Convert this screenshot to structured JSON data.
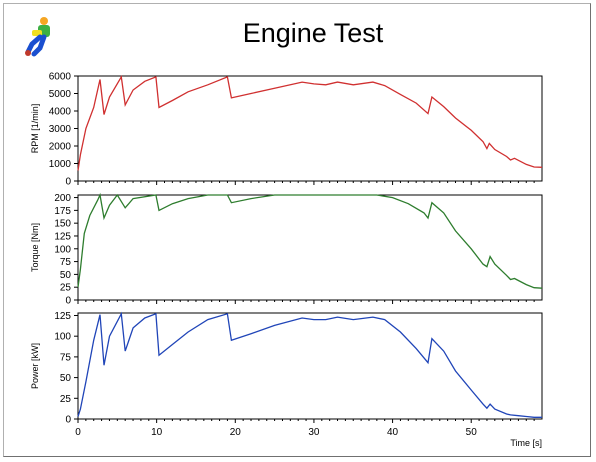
{
  "chart_data": {
    "title": "Engine Test",
    "type": "line",
    "x_axis": {
      "label": "Time [s]",
      "range": [
        0,
        59
      ],
      "ticks": [
        0,
        10,
        20,
        30,
        40,
        50
      ]
    },
    "panels": [
      {
        "name": "rpm",
        "ylabel": "RPM [1/min]",
        "ylim": [
          0,
          6000
        ],
        "yticks": [
          0,
          1000,
          2000,
          3000,
          4000,
          5000,
          6000
        ],
        "color": "#d03030",
        "points": [
          [
            0,
            600
          ],
          [
            0.3,
            1500
          ],
          [
            1,
            3000
          ],
          [
            2,
            4200
          ],
          [
            2.8,
            5800
          ],
          [
            3.3,
            3800
          ],
          [
            4,
            4800
          ],
          [
            5.5,
            5950
          ],
          [
            6,
            4350
          ],
          [
            7,
            5200
          ],
          [
            8.5,
            5700
          ],
          [
            9.9,
            5950
          ],
          [
            10.3,
            4200
          ],
          [
            12,
            4600
          ],
          [
            14,
            5100
          ],
          [
            16.5,
            5500
          ],
          [
            19,
            5950
          ],
          [
            19.5,
            4750
          ],
          [
            22,
            5000
          ],
          [
            25,
            5300
          ],
          [
            28.5,
            5650
          ],
          [
            30,
            5550
          ],
          [
            31.5,
            5500
          ],
          [
            33,
            5650
          ],
          [
            35,
            5500
          ],
          [
            37.5,
            5650
          ],
          [
            39,
            5450
          ],
          [
            41,
            4950
          ],
          [
            43,
            4450
          ],
          [
            44.5,
            3850
          ],
          [
            45,
            4800
          ],
          [
            46.5,
            4250
          ],
          [
            48,
            3600
          ],
          [
            50,
            2900
          ],
          [
            51.5,
            2250
          ],
          [
            52,
            1850
          ],
          [
            52.3,
            2150
          ],
          [
            53,
            1800
          ],
          [
            54.5,
            1400
          ],
          [
            55,
            1200
          ],
          [
            55.5,
            1300
          ],
          [
            57,
            950
          ],
          [
            58,
            800
          ],
          [
            59,
            780
          ]
        ]
      },
      {
        "name": "torque",
        "ylabel": "Torque [Nm]",
        "ylim": [
          0,
          205
        ],
        "yticks": [
          0,
          25,
          50,
          75,
          100,
          125,
          150,
          175,
          200
        ],
        "color": "#2e7d2e",
        "points": [
          [
            0,
            25
          ],
          [
            0.3,
            60
          ],
          [
            0.8,
            130
          ],
          [
            1.5,
            165
          ],
          [
            2.5,
            195
          ],
          [
            2.8,
            205
          ],
          [
            3.3,
            160
          ],
          [
            4,
            185
          ],
          [
            5,
            205
          ],
          [
            6,
            180
          ],
          [
            7,
            198
          ],
          [
            9.9,
            205
          ],
          [
            10.3,
            175
          ],
          [
            12,
            188
          ],
          [
            14,
            198
          ],
          [
            16.5,
            205
          ],
          [
            19,
            205
          ],
          [
            19.5,
            190
          ],
          [
            22,
            198
          ],
          [
            25,
            205
          ],
          [
            30,
            205
          ],
          [
            35,
            205
          ],
          [
            38,
            205
          ],
          [
            40,
            200
          ],
          [
            42,
            188
          ],
          [
            44,
            170
          ],
          [
            44.5,
            160
          ],
          [
            45,
            190
          ],
          [
            46.5,
            170
          ],
          [
            48,
            135
          ],
          [
            50,
            100
          ],
          [
            51.5,
            70
          ],
          [
            52,
            65
          ],
          [
            52.4,
            85
          ],
          [
            53,
            70
          ],
          [
            54.5,
            48
          ],
          [
            55,
            40
          ],
          [
            55.5,
            42
          ],
          [
            57,
            30
          ],
          [
            58,
            24
          ],
          [
            59,
            23
          ]
        ]
      },
      {
        "name": "power",
        "ylabel": "Power [kW]",
        "ylim": [
          0,
          128
        ],
        "yticks": [
          0,
          25,
          50,
          75,
          100,
          125
        ],
        "color": "#2045b8",
        "points": [
          [
            0,
            3
          ],
          [
            0.3,
            12
          ],
          [
            1,
            45
          ],
          [
            2,
            95
          ],
          [
            2.8,
            126
          ],
          [
            3.3,
            65
          ],
          [
            4,
            100
          ],
          [
            5.5,
            127
          ],
          [
            6,
            82
          ],
          [
            7,
            110
          ],
          [
            8.5,
            122
          ],
          [
            9.9,
            127
          ],
          [
            10.3,
            77
          ],
          [
            12,
            90
          ],
          [
            14,
            105
          ],
          [
            16.5,
            120
          ],
          [
            19,
            127
          ],
          [
            19.5,
            95
          ],
          [
            22,
            103
          ],
          [
            25,
            113
          ],
          [
            28.5,
            122
          ],
          [
            30,
            120
          ],
          [
            31.5,
            120
          ],
          [
            33,
            123
          ],
          [
            35,
            120
          ],
          [
            37.5,
            123
          ],
          [
            39,
            120
          ],
          [
            41,
            105
          ],
          [
            43,
            85
          ],
          [
            44.5,
            68
          ],
          [
            45,
            97
          ],
          [
            46.5,
            82
          ],
          [
            48,
            58
          ],
          [
            50,
            35
          ],
          [
            51.5,
            18
          ],
          [
            52,
            13
          ],
          [
            52.4,
            18
          ],
          [
            53,
            12
          ],
          [
            54.5,
            6
          ],
          [
            55,
            5
          ],
          [
            56,
            4
          ],
          [
            57,
            3
          ],
          [
            58,
            2
          ],
          [
            59,
            2
          ]
        ]
      }
    ]
  }
}
